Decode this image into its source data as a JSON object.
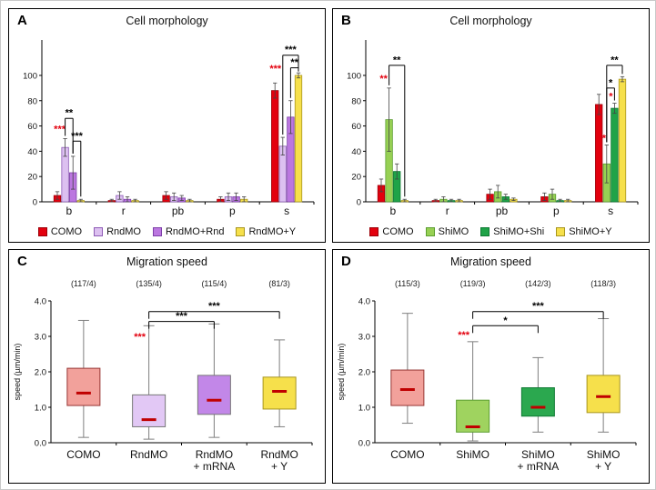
{
  "figure": {
    "background": "#ffffff",
    "panel_border": "#000000"
  },
  "panels": [
    {
      "letter": "A"
    },
    {
      "letter": "B"
    },
    {
      "letter": "C"
    },
    {
      "letter": "D"
    }
  ],
  "chart_data": [
    {
      "type": "bar",
      "panel": "A",
      "title": "Cell morphology",
      "categories": [
        "b",
        "r",
        "pb",
        "p",
        "s"
      ],
      "ylim": [
        0,
        100
      ],
      "yticks": [
        0,
        20,
        40,
        60,
        80,
        100
      ],
      "grid": false,
      "legend_position": "bottom",
      "series": [
        {
          "name": "COMO",
          "fill": "#e3000e",
          "stroke": "#9c0008",
          "values": [
            5,
            1,
            5,
            2,
            88
          ],
          "errors": [
            3,
            1,
            3,
            2,
            6
          ]
        },
        {
          "name": "RndMO",
          "fill": "#dcc0f0",
          "stroke": "#8e5bb5",
          "values": [
            43,
            5,
            4,
            4,
            44
          ],
          "errors": [
            7,
            3,
            3,
            3,
            7
          ]
        },
        {
          "name": "RndMO+Rnd",
          "fill": "#bb77e0",
          "stroke": "#7d3fa8",
          "values": [
            23,
            2,
            3,
            4,
            67
          ],
          "errors": [
            13,
            2,
            2,
            3,
            13
          ]
        },
        {
          "name": "RndMO+Y",
          "fill": "#f6e04b",
          "stroke": "#a8951f",
          "values": [
            1,
            1,
            1,
            2,
            100
          ],
          "errors": [
            1,
            1,
            1,
            2,
            2
          ]
        }
      ],
      "significance": [
        {
          "kind": "stars",
          "cat": 0,
          "series": 1,
          "label": "***",
          "color": "#e3000e",
          "y": 55,
          "dx": -6
        },
        {
          "kind": "bracket",
          "cat": 0,
          "from": 1,
          "to": 2,
          "label": "**",
          "color": "#000000",
          "y": 66
        },
        {
          "kind": "bracket",
          "cat": 0,
          "from": 2,
          "to": 3,
          "label": "***",
          "color": "#000000",
          "y": 48
        },
        {
          "kind": "stars",
          "cat": 4,
          "series": 1,
          "label": "***",
          "color": "#e3000e",
          "y": 103,
          "dx": -8
        },
        {
          "kind": "bracket",
          "cat": 4,
          "from": 2,
          "to": 3,
          "label": "**",
          "color": "#000000",
          "y": 106
        },
        {
          "kind": "bracket",
          "cat": 4,
          "from": 1,
          "to": 3,
          "label": "***",
          "color": "#000000",
          "y": 116
        }
      ]
    },
    {
      "type": "bar",
      "panel": "B",
      "title": "Cell morphology",
      "categories": [
        "b",
        "r",
        "pb",
        "p",
        "s"
      ],
      "ylim": [
        0,
        100
      ],
      "yticks": [
        0,
        20,
        40,
        60,
        80,
        100
      ],
      "grid": false,
      "legend_position": "bottom",
      "series": [
        {
          "name": "COMO",
          "fill": "#e3000e",
          "stroke": "#9c0008",
          "values": [
            13,
            1,
            6,
            4,
            77
          ],
          "errors": [
            5,
            1,
            4,
            3,
            8
          ]
        },
        {
          "name": "ShiMO",
          "fill": "#97d054",
          "stroke": "#5c9e31",
          "values": [
            65,
            2,
            8,
            6,
            30
          ],
          "errors": [
            25,
            2,
            5,
            4,
            15
          ]
        },
        {
          "name": "ShiMO+Shi",
          "fill": "#1fa348",
          "stroke": "#0e7a33",
          "values": [
            24,
            1,
            4,
            1,
            74
          ],
          "errors": [
            6,
            1,
            2,
            1,
            4
          ]
        },
        {
          "name": "ShiMO+Y",
          "fill": "#f6e04b",
          "stroke": "#a8951f",
          "values": [
            1,
            1,
            2,
            1,
            97
          ],
          "errors": [
            1,
            1,
            1,
            1,
            2
          ]
        }
      ],
      "significance": [
        {
          "kind": "stars",
          "cat": 0,
          "series": 1,
          "label": "**",
          "color": "#e3000e",
          "y": 95,
          "dx": -6
        },
        {
          "kind": "bracket",
          "cat": 0,
          "from": 1,
          "to": 3,
          "label": "**",
          "color": "#000000",
          "y": 108
        },
        {
          "kind": "stars",
          "cat": 4,
          "series": 1,
          "label": "**",
          "color": "#e3000e",
          "y": 48,
          "dx": -5
        },
        {
          "kind": "stars",
          "cat": 4,
          "series": 2,
          "label": "*",
          "color": "#e3000e",
          "y": 81,
          "dx": -4
        },
        {
          "kind": "bracket",
          "cat": 4,
          "from": 1,
          "to": 2,
          "label": "*",
          "color": "#000000",
          "y": 90
        },
        {
          "kind": "bracket",
          "cat": 4,
          "from": 1,
          "to": 3,
          "label": "**",
          "color": "#000000",
          "y": 108
        }
      ]
    },
    {
      "type": "box",
      "panel": "C",
      "title": "Migration speed",
      "ylabel": "speed (µm/min)",
      "ylim": [
        0,
        4
      ],
      "yticks": [
        0,
        1,
        2,
        3,
        4
      ],
      "grid": false,
      "categories": [
        {
          "lines": [
            "COMO"
          ],
          "n": "(117/4)"
        },
        {
          "lines": [
            "RndMO"
          ],
          "n": "(135/4)"
        },
        {
          "lines": [
            "RndMO",
            "+ mRNA"
          ],
          "n": "(115/4)"
        },
        {
          "lines": [
            "RndMO",
            "+ Y"
          ],
          "n": "(81/3)"
        }
      ],
      "boxes": [
        {
          "name": "COMO",
          "fill": "#f2a19b",
          "stroke": "#963634",
          "q1": 1.05,
          "q3": 2.1,
          "median": 1.4,
          "lo": 0.15,
          "hi": 3.45
        },
        {
          "name": "RndMO",
          "fill": "#e2c8f5",
          "stroke": "#777777",
          "q1": 0.45,
          "q3": 1.35,
          "median": 0.65,
          "lo": 0.1,
          "hi": 3.3
        },
        {
          "name": "RndMO + mRNA",
          "fill": "#c287e8",
          "stroke": "#777777",
          "q1": 0.8,
          "q3": 1.9,
          "median": 1.2,
          "lo": 0.15,
          "hi": 3.35
        },
        {
          "name": "RndMO + Y",
          "fill": "#f6e04b",
          "stroke": "#a8951f",
          "q1": 0.95,
          "q3": 1.85,
          "median": 1.45,
          "lo": 0.45,
          "hi": 2.9
        }
      ],
      "significance": [
        {
          "kind": "stars",
          "series": 1,
          "label": "***",
          "color": "#e3000e",
          "y": 2.9,
          "dx": -10
        },
        {
          "kind": "bracket",
          "from": 1,
          "to": 2,
          "label": "***",
          "color": "#000000",
          "y": 3.42
        },
        {
          "kind": "bracket",
          "from": 1,
          "to": 3,
          "label": "***",
          "color": "#000000",
          "y": 3.7
        }
      ]
    },
    {
      "type": "box",
      "panel": "D",
      "title": "Migration speed",
      "ylabel": "speed (µm/min)",
      "ylim": [
        0,
        4
      ],
      "yticks": [
        0,
        1,
        2,
        3,
        4
      ],
      "grid": false,
      "categories": [
        {
          "lines": [
            "COMO"
          ],
          "n": "(115/3)"
        },
        {
          "lines": [
            "ShiMO"
          ],
          "n": "(119/3)"
        },
        {
          "lines": [
            "ShiMO",
            "+ mRNA"
          ],
          "n": "(142/3)"
        },
        {
          "lines": [
            "ShiMO",
            "+ Y"
          ],
          "n": "(118/3)"
        }
      ],
      "boxes": [
        {
          "name": "COMO",
          "fill": "#f2a19b",
          "stroke": "#963634",
          "q1": 1.05,
          "q3": 2.05,
          "median": 1.5,
          "lo": 0.55,
          "hi": 3.65
        },
        {
          "name": "ShiMO",
          "fill": "#9fd35f",
          "stroke": "#5c9e31",
          "q1": 0.3,
          "q3": 1.2,
          "median": 0.45,
          "lo": 0.05,
          "hi": 2.85
        },
        {
          "name": "ShiMO + mRNA",
          "fill": "#2ba84f",
          "stroke": "#0e7a33",
          "q1": 0.75,
          "q3": 1.55,
          "median": 1.0,
          "lo": 0.3,
          "hi": 2.4
        },
        {
          "name": "ShiMO + Y",
          "fill": "#f6e04b",
          "stroke": "#a8951f",
          "q1": 0.85,
          "q3": 1.9,
          "median": 1.3,
          "lo": 0.3,
          "hi": 3.5
        }
      ],
      "significance": [
        {
          "kind": "stars",
          "series": 1,
          "label": "***",
          "color": "#e3000e",
          "y": 2.95,
          "dx": -10
        },
        {
          "kind": "bracket",
          "from": 1,
          "to": 2,
          "label": "*",
          "color": "#000000",
          "y": 3.3
        },
        {
          "kind": "bracket",
          "from": 1,
          "to": 3,
          "label": "***",
          "color": "#000000",
          "y": 3.7
        }
      ]
    }
  ]
}
